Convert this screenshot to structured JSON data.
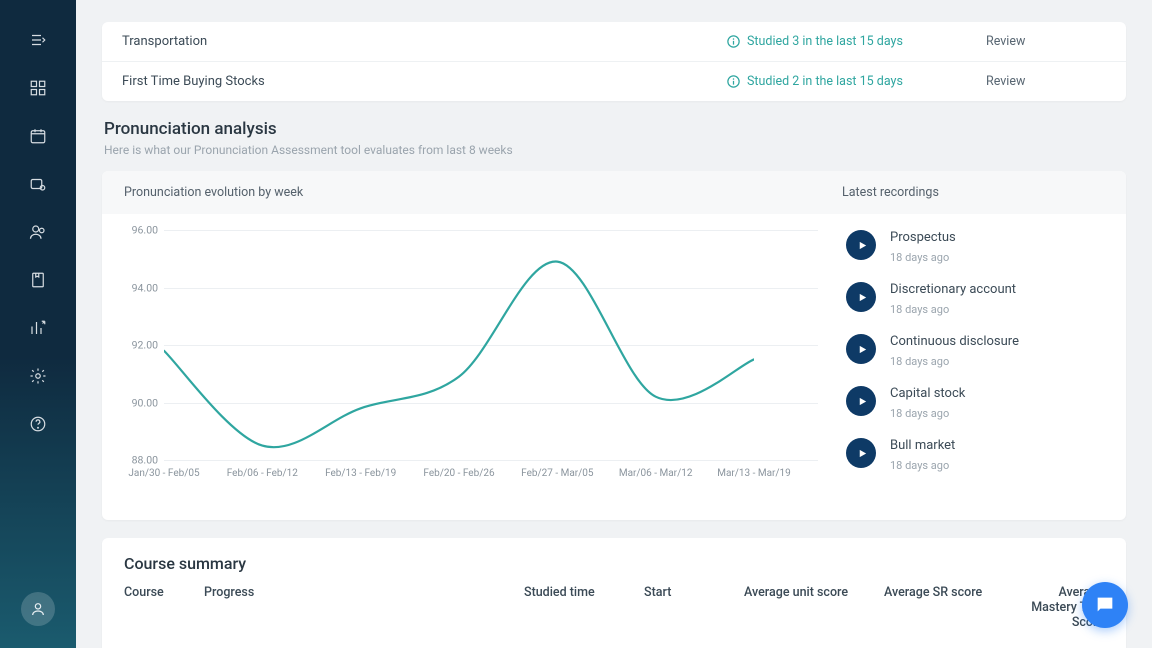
{
  "study_rows": [
    {
      "title": "Transportation",
      "status": "Studied 3 in the last 15 days",
      "action": "Review"
    },
    {
      "title": "First Time Buying Stocks",
      "status": "Studied 2 in the last 15 days",
      "action": "Review"
    }
  ],
  "pronunciation": {
    "title": "Pronunciation analysis",
    "subtitle": "Here is what our Pronunciation Assessment tool evaluates from last 8 weeks",
    "chart": {
      "panel_title": "Pronunciation evolution by week",
      "type": "line",
      "line_color": "#2fa6a0",
      "line_width": 2.2,
      "grid_color": "#eceff2",
      "background_color": "#ffffff",
      "y_ticks": [
        88.0,
        90.0,
        92.0,
        94.0,
        96.0
      ],
      "y_tick_labels": [
        "88.00",
        "90.00",
        "92.00",
        "94.00",
        "96.00"
      ],
      "ylim": [
        88.0,
        96.0
      ],
      "x_labels": [
        "Jan/30 - Feb/05",
        "Feb/06 - Feb/12",
        "Feb/13 - Feb/19",
        "Feb/20 - Feb/26",
        "Feb/27 - Mar/05",
        "Mar/06 - Mar/12",
        "Mar/13 - Mar/19"
      ],
      "values": [
        91.8,
        88.5,
        89.8,
        90.9,
        94.9,
        90.2,
        91.5
      ],
      "label_fontsize": 10,
      "label_color": "#8a949d"
    },
    "recordings": {
      "panel_title": "Latest recordings",
      "items": [
        {
          "label": "Prospectus",
          "time": "18 days ago"
        },
        {
          "label": "Discretionary account",
          "time": "18 days ago"
        },
        {
          "label": "Continuous disclosure",
          "time": "18 days ago"
        },
        {
          "label": "Capital stock",
          "time": "18 days ago"
        },
        {
          "label": "Bull market",
          "time": "18 days ago"
        }
      ],
      "play_bg": "#0e3a66"
    }
  },
  "summary": {
    "title": "Course summary",
    "columns": {
      "course": "Course",
      "progress": "Progress",
      "studied_time": "Studied time",
      "start": "Start",
      "avg_unit": "Average unit score",
      "avg_sr": "Average SR score",
      "avg_mastery": "Average Mastery Test Score"
    }
  },
  "colors": {
    "teal": "#2fa6a0",
    "text_primary": "#3b4a56",
    "text_muted": "#9aa4ad",
    "chat_fab": "#2e82f6"
  }
}
